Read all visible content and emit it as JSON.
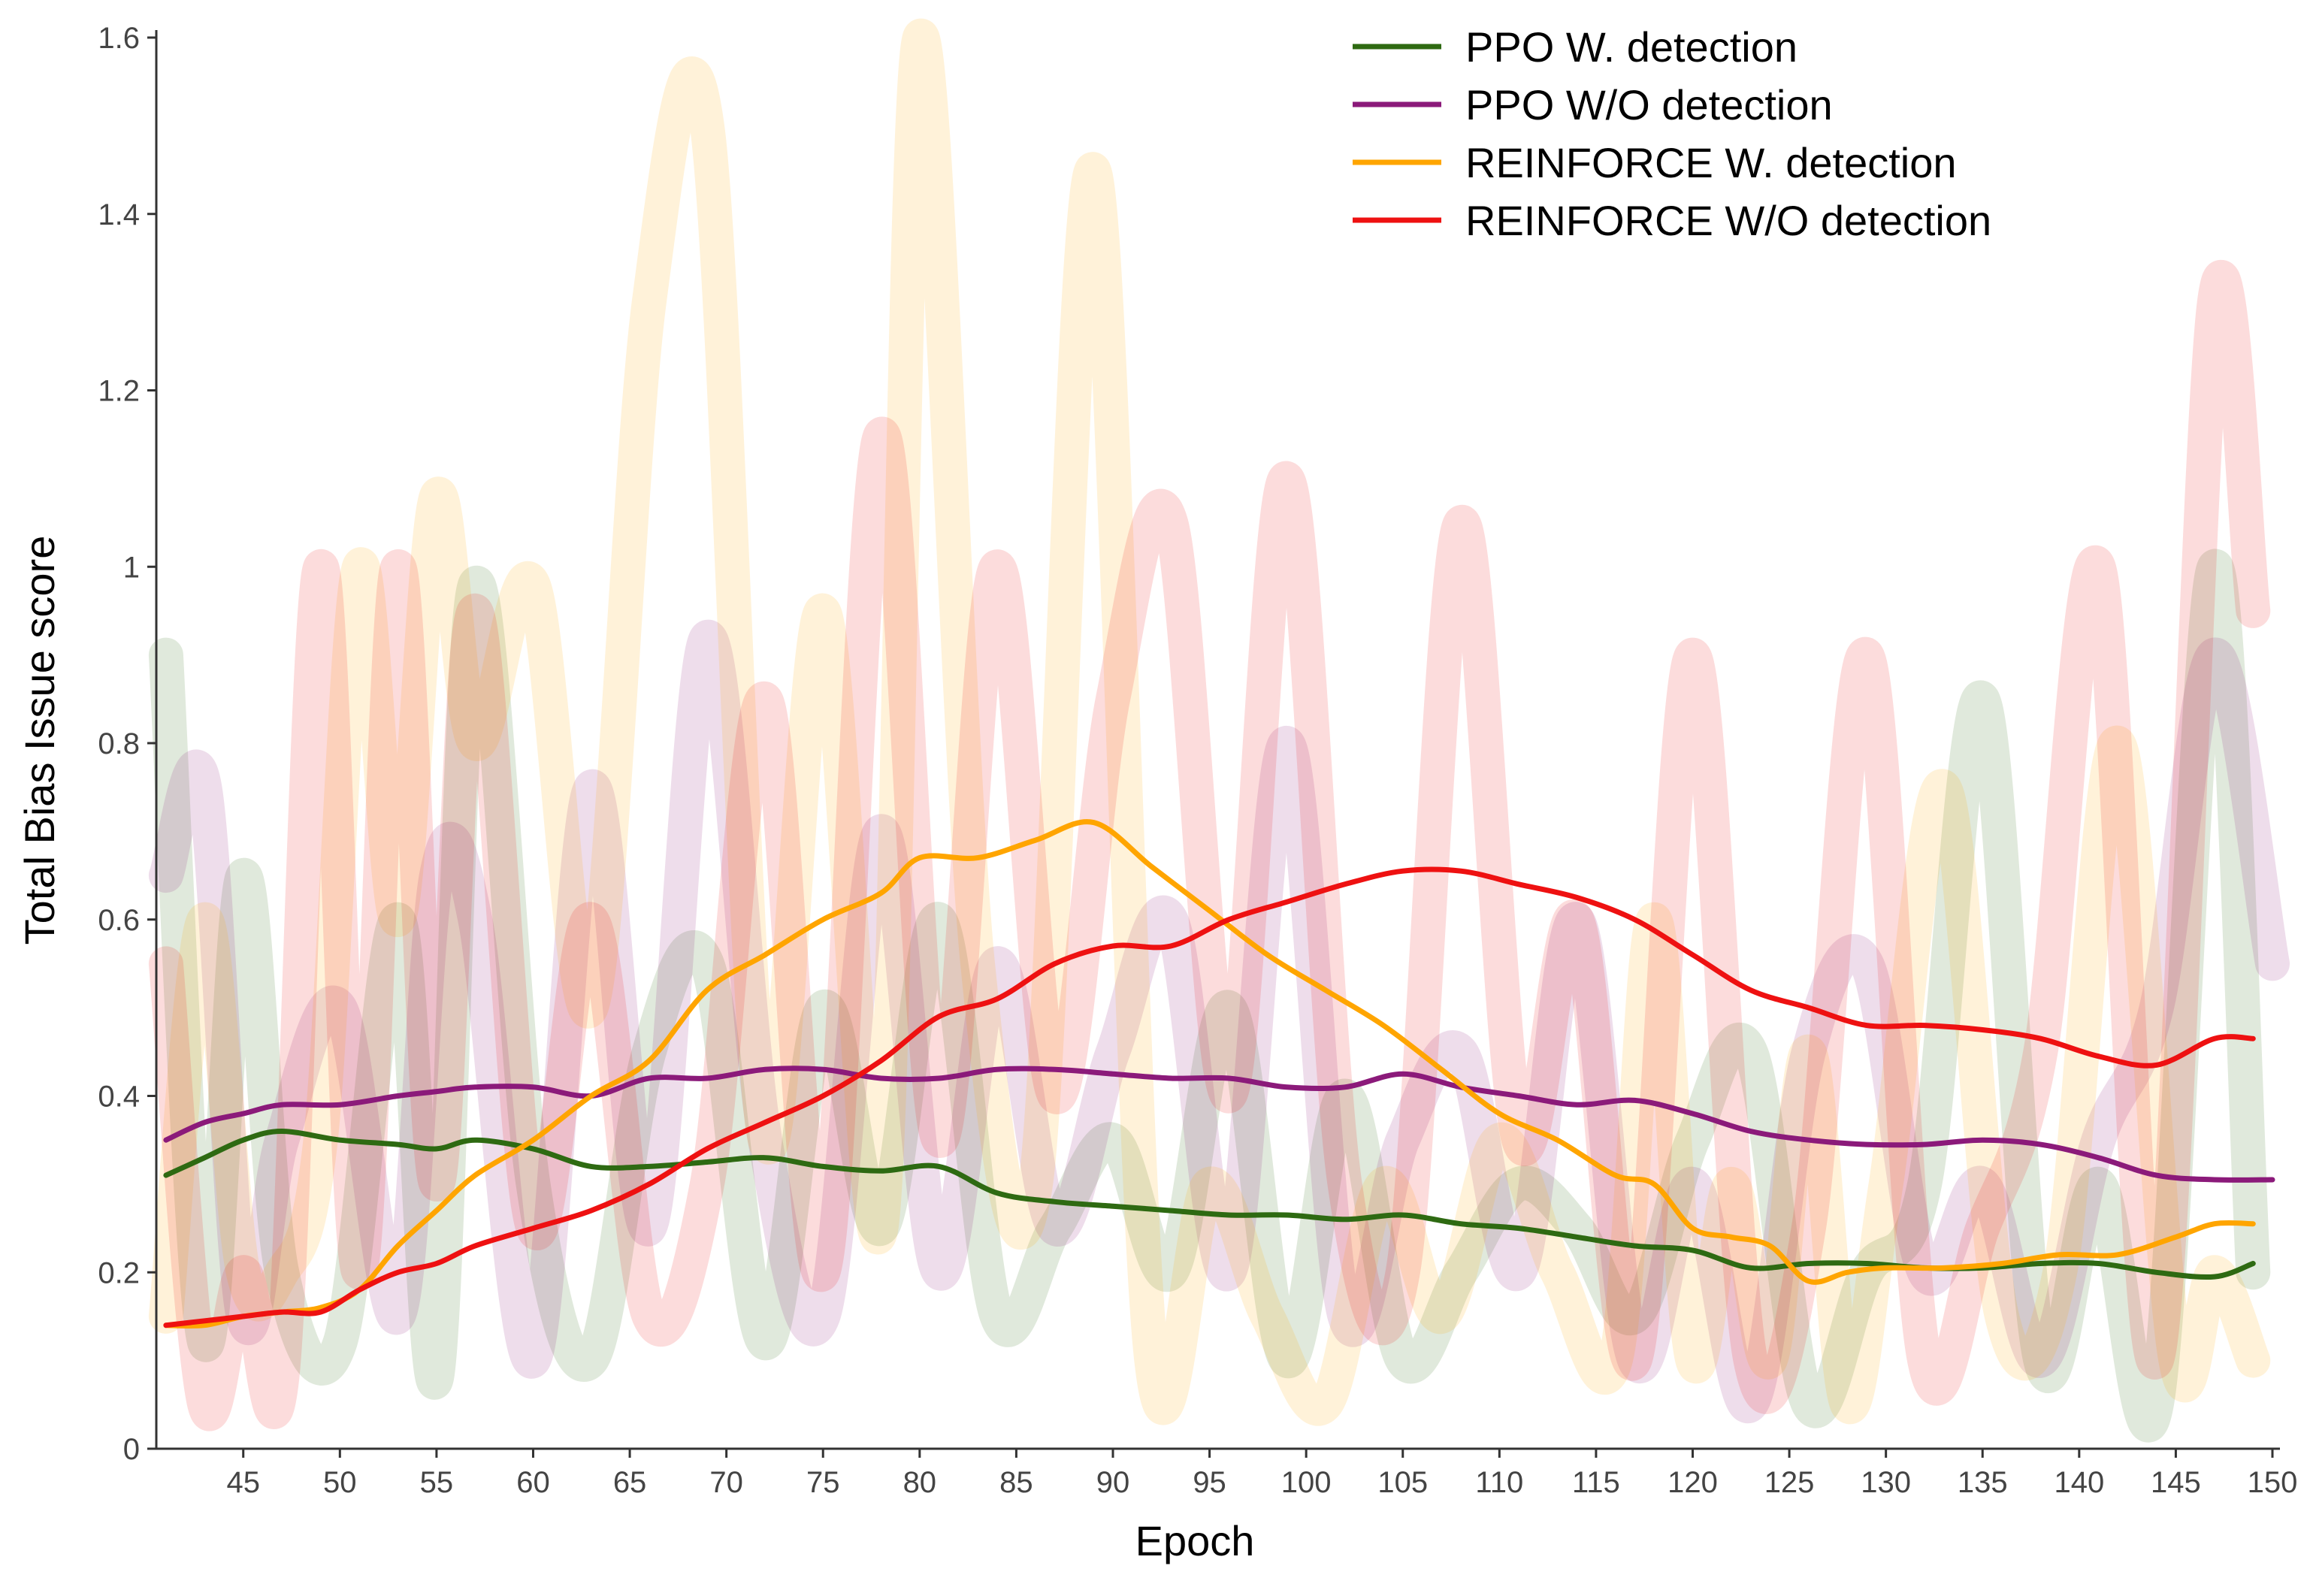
{
  "chart_data": {
    "type": "line",
    "xlabel": "Epoch",
    "ylabel": "Total Bias Issue score",
    "xlim": [
      40.5,
      150
    ],
    "ylim": [
      0,
      1.6
    ],
    "x_ticks": [
      45,
      50,
      55,
      60,
      65,
      70,
      75,
      80,
      85,
      90,
      95,
      100,
      105,
      110,
      115,
      120,
      125,
      130,
      135,
      140,
      145,
      150
    ],
    "y_ticks": [
      0,
      0.2,
      0.4,
      0.6,
      0.8,
      1,
      1.2,
      1.4,
      1.6
    ],
    "y_tick_labels": [
      "0",
      "0.2",
      "0.4",
      "0.6",
      "0.8",
      "1",
      "1.2",
      "1.4",
      "1.6"
    ],
    "grid": false,
    "legend_position": "top-right",
    "raw_opacity": 0.15,
    "series": [
      {
        "name": "PPO W. detection",
        "color": "#2e6a12",
        "x": [
          41,
          43,
          45,
          47,
          50,
          53,
          55,
          57,
          60,
          63,
          66,
          69,
          72,
          75,
          78,
          81,
          84,
          87,
          90,
          93,
          96,
          99,
          102,
          105,
          108,
          111,
          114,
          117,
          120,
          123,
          126,
          129,
          132,
          135,
          138,
          141,
          144,
          147,
          149
        ],
        "y": [
          0.31,
          0.33,
          0.35,
          0.36,
          0.35,
          0.345,
          0.34,
          0.35,
          0.34,
          0.32,
          0.32,
          0.325,
          0.33,
          0.32,
          0.315,
          0.32,
          0.29,
          0.28,
          0.275,
          0.27,
          0.265,
          0.265,
          0.26,
          0.265,
          0.255,
          0.25,
          0.24,
          0.23,
          0.225,
          0.205,
          0.21,
          0.21,
          0.205,
          0.205,
          0.21,
          0.21,
          0.2,
          0.195,
          0.21
        ],
        "raw": [
          0.9,
          0.12,
          0.65,
          0.2,
          0.12,
          0.6,
          0.08,
          0.98,
          0.3,
          0.1,
          0.45,
          0.55,
          0.12,
          0.5,
          0.25,
          0.6,
          0.15,
          0.25,
          0.35,
          0.2,
          0.5,
          0.1,
          0.4,
          0.1,
          0.2,
          0.3,
          0.25,
          0.15,
          0.35,
          0.45,
          0.05,
          0.2,
          0.3,
          0.85,
          0.1,
          0.3,
          0.05,
          1.0,
          0.2
        ]
      },
      {
        "name": "PPO W/O detection",
        "color": "#8b1a7a",
        "x": [
          41,
          43,
          45,
          47,
          50,
          53,
          55,
          57,
          60,
          63,
          66,
          69,
          72,
          75,
          78,
          81,
          84,
          87,
          90,
          93,
          96,
          99,
          102,
          105,
          108,
          111,
          114,
          117,
          120,
          123,
          126,
          129,
          132,
          135,
          138,
          141,
          144,
          147,
          150
        ],
        "y": [
          0.35,
          0.37,
          0.38,
          0.39,
          0.39,
          0.4,
          0.405,
          0.41,
          0.41,
          0.4,
          0.42,
          0.42,
          0.43,
          0.43,
          0.42,
          0.42,
          0.43,
          0.43,
          0.425,
          0.42,
          0.42,
          0.41,
          0.41,
          0.425,
          0.41,
          0.4,
          0.39,
          0.395,
          0.38,
          0.36,
          0.35,
          0.345,
          0.345,
          0.35,
          0.345,
          0.33,
          0.31,
          0.305,
          0.305
        ],
        "raw": [
          0.65,
          0.75,
          0.15,
          0.35,
          0.5,
          0.15,
          0.65,
          0.6,
          0.1,
          0.75,
          0.25,
          0.92,
          0.35,
          0.15,
          0.7,
          0.2,
          0.55,
          0.25,
          0.45,
          0.6,
          0.2,
          0.8,
          0.15,
          0.35,
          0.45,
          0.2,
          0.6,
          0.1,
          0.3,
          0.05,
          0.45,
          0.55,
          0.2,
          0.3,
          0.1,
          0.35,
          0.5,
          0.9,
          0.55
        ]
      },
      {
        "name": "REINFORCE W. detection",
        "color": "#ffa500",
        "x": [
          41,
          43,
          45,
          47,
          49,
          51,
          53,
          55,
          57,
          60,
          63,
          66,
          69,
          72,
          75,
          78,
          80,
          83,
          86,
          89,
          92,
          95,
          98,
          101,
          104,
          107,
          110,
          113,
          116,
          118,
          120,
          122,
          124,
          126,
          128,
          130,
          133,
          136,
          139,
          142,
          145,
          147,
          149
        ],
        "y": [
          0.14,
          0.14,
          0.15,
          0.155,
          0.16,
          0.18,
          0.23,
          0.27,
          0.31,
          0.35,
          0.4,
          0.44,
          0.52,
          0.56,
          0.6,
          0.63,
          0.67,
          0.67,
          0.69,
          0.71,
          0.66,
          0.61,
          0.56,
          0.52,
          0.48,
          0.43,
          0.38,
          0.35,
          0.31,
          0.3,
          0.25,
          0.24,
          0.23,
          0.19,
          0.2,
          0.205,
          0.205,
          0.21,
          0.22,
          0.22,
          0.24,
          0.255,
          0.255
        ],
        "raw": [
          0.15,
          0.6,
          0.2,
          0.2,
          0.35,
          1.0,
          0.6,
          1.08,
          0.8,
          0.98,
          0.5,
          1.3,
          1.5,
          0.35,
          0.95,
          0.25,
          1.6,
          0.55,
          0.3,
          1.45,
          0.1,
          0.3,
          0.15,
          0.05,
          0.3,
          0.15,
          0.35,
          0.2,
          0.1,
          0.6,
          0.1,
          0.3,
          0.1,
          0.45,
          0.05,
          0.3,
          0.75,
          0.15,
          0.2,
          0.8,
          0.1,
          0.2,
          0.1
        ]
      },
      {
        "name": "REINFORCE W/O detection",
        "color": "#ee1111",
        "x": [
          41,
          43,
          45,
          47,
          49,
          51,
          53,
          55,
          57,
          60,
          63,
          66,
          69,
          72,
          75,
          78,
          81,
          84,
          87,
          90,
          93,
          96,
          99,
          102,
          105,
          108,
          111,
          114,
          117,
          120,
          123,
          126,
          129,
          132,
          135,
          138,
          141,
          144,
          147,
          149
        ],
        "y": [
          0.14,
          0.145,
          0.15,
          0.155,
          0.155,
          0.18,
          0.2,
          0.21,
          0.23,
          0.25,
          0.27,
          0.3,
          0.34,
          0.37,
          0.4,
          0.44,
          0.49,
          0.51,
          0.55,
          0.57,
          0.57,
          0.6,
          0.62,
          0.64,
          0.655,
          0.655,
          0.64,
          0.625,
          0.6,
          0.56,
          0.52,
          0.5,
          0.48,
          0.48,
          0.475,
          0.465,
          0.445,
          0.435,
          0.465,
          0.465
        ],
        "raw": [
          0.55,
          0.05,
          0.2,
          0.08,
          1.0,
          0.2,
          1.0,
          0.3,
          0.95,
          0.25,
          0.6,
          0.15,
          0.3,
          0.85,
          0.2,
          1.15,
          0.35,
          1.0,
          0.4,
          0.85,
          1.05,
          0.4,
          1.1,
          0.3,
          0.2,
          1.05,
          0.35,
          0.6,
          0.1,
          0.9,
          0.1,
          0.25,
          0.9,
          0.1,
          0.25,
          0.45,
          1.0,
          0.1,
          1.3,
          0.95
        ]
      }
    ]
  }
}
